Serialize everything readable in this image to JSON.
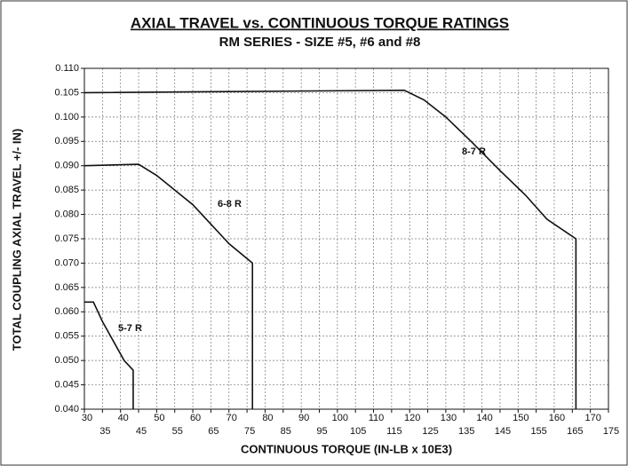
{
  "chart_data": {
    "type": "line",
    "title": "AXIAL TRAVEL vs. CONTINUOUS TORQUE RATINGS",
    "subtitle": "RM SERIES - SIZE #5, #6 and #8",
    "x_label": "CONTINUOUS TORQUE (IN-LB x 10E3)",
    "y_label": "TOTAL COUPLING AXIAL TRAVEL +/- IN)",
    "xlim": [
      30,
      175
    ],
    "xticks": [
      30,
      35,
      40,
      45,
      50,
      55,
      60,
      65,
      70,
      75,
      80,
      85,
      90,
      95,
      100,
      105,
      110,
      115,
      120,
      125,
      130,
      135,
      140,
      145,
      150,
      155,
      160,
      165,
      170,
      175
    ],
    "ylim": [
      0.04,
      0.11
    ],
    "yticks": [
      {
        "value": 0.04,
        "label": "0.040"
      },
      0.045,
      {
        "value": 0.05,
        "label": "0.050"
      },
      0.055,
      {
        "value": 0.06,
        "label": "0.060"
      },
      0.065,
      {
        "value": 0.07,
        "label": "0.070"
      },
      0.075,
      {
        "value": 0.08,
        "label": "0.080"
      },
      0.085,
      {
        "value": 0.09,
        "label": "0.090"
      },
      0.095,
      {
        "value": 0.1,
        "label": "0.100"
      },
      0.105,
      {
        "value": 0.11,
        "label": "0.110"
      }
    ],
    "grid": true,
    "series": [
      {
        "name": "5-7 R",
        "color": "#111111",
        "x": [
          30,
          32.5,
          35,
          38,
          41,
          43.5,
          43.5
        ],
        "values": [
          0.062,
          0.062,
          0.058,
          0.054,
          0.05,
          0.048,
          0.04
        ]
      },
      {
        "name": "6-8 R",
        "color": "#111111",
        "x": [
          30,
          45,
          50,
          55,
          60,
          65,
          70,
          76.5,
          76.5
        ],
        "values": [
          0.09,
          0.0903,
          0.088,
          0.085,
          0.082,
          0.078,
          0.074,
          0.07,
          0.04
        ]
      },
      {
        "name": "8-7 R",
        "color": "#111111",
        "x": [
          30,
          118.5,
          124,
          130,
          137,
          145,
          152,
          158,
          166,
          166
        ],
        "values": [
          0.105,
          0.1055,
          0.1035,
          0.1,
          0.095,
          0.089,
          0.084,
          0.079,
          0.075,
          0.04
        ]
      }
    ]
  }
}
